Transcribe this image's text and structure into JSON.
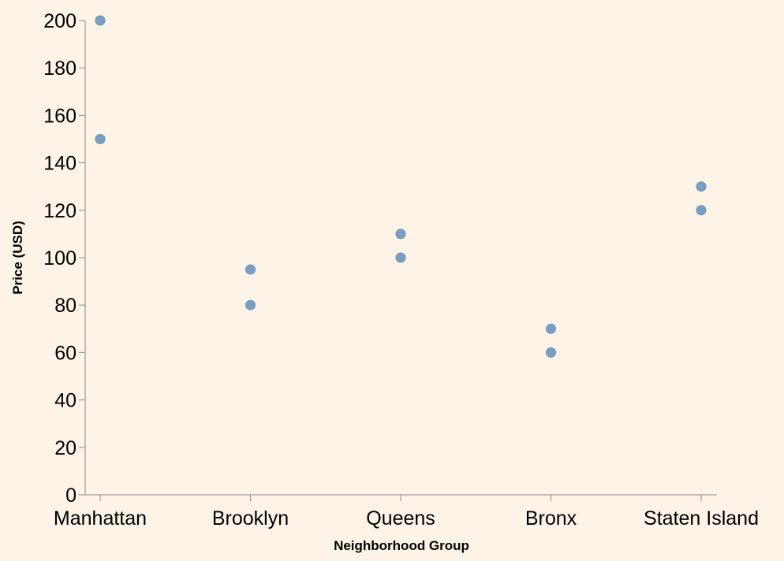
{
  "chart_data": {
    "type": "scatter",
    "title": "",
    "xlabel": "Neighborhood Group",
    "ylabel": "Price (USD)",
    "categories": [
      "Manhattan",
      "Brooklyn",
      "Queens",
      "Bronx",
      "Staten Island"
    ],
    "ylim": [
      0,
      200
    ],
    "y_ticks": [
      "0",
      "20",
      "40",
      "60",
      "80",
      "100",
      "120",
      "140",
      "160",
      "180",
      "200"
    ],
    "grid": false,
    "legend": "none",
    "points": [
      {
        "x": "Manhattan",
        "y": 200
      },
      {
        "x": "Manhattan",
        "y": 150
      },
      {
        "x": "Brooklyn",
        "y": 95
      },
      {
        "x": "Brooklyn",
        "y": 80
      },
      {
        "x": "Queens",
        "y": 110
      },
      {
        "x": "Queens",
        "y": 100
      },
      {
        "x": "Bronx",
        "y": 70
      },
      {
        "x": "Bronx",
        "y": 60
      },
      {
        "x": "Staten Island",
        "y": 130
      },
      {
        "x": "Staten Island",
        "y": 120
      }
    ],
    "colors": {
      "background": "#fdf3e6",
      "point": "#7a9fc4",
      "axis": "#888888"
    }
  }
}
